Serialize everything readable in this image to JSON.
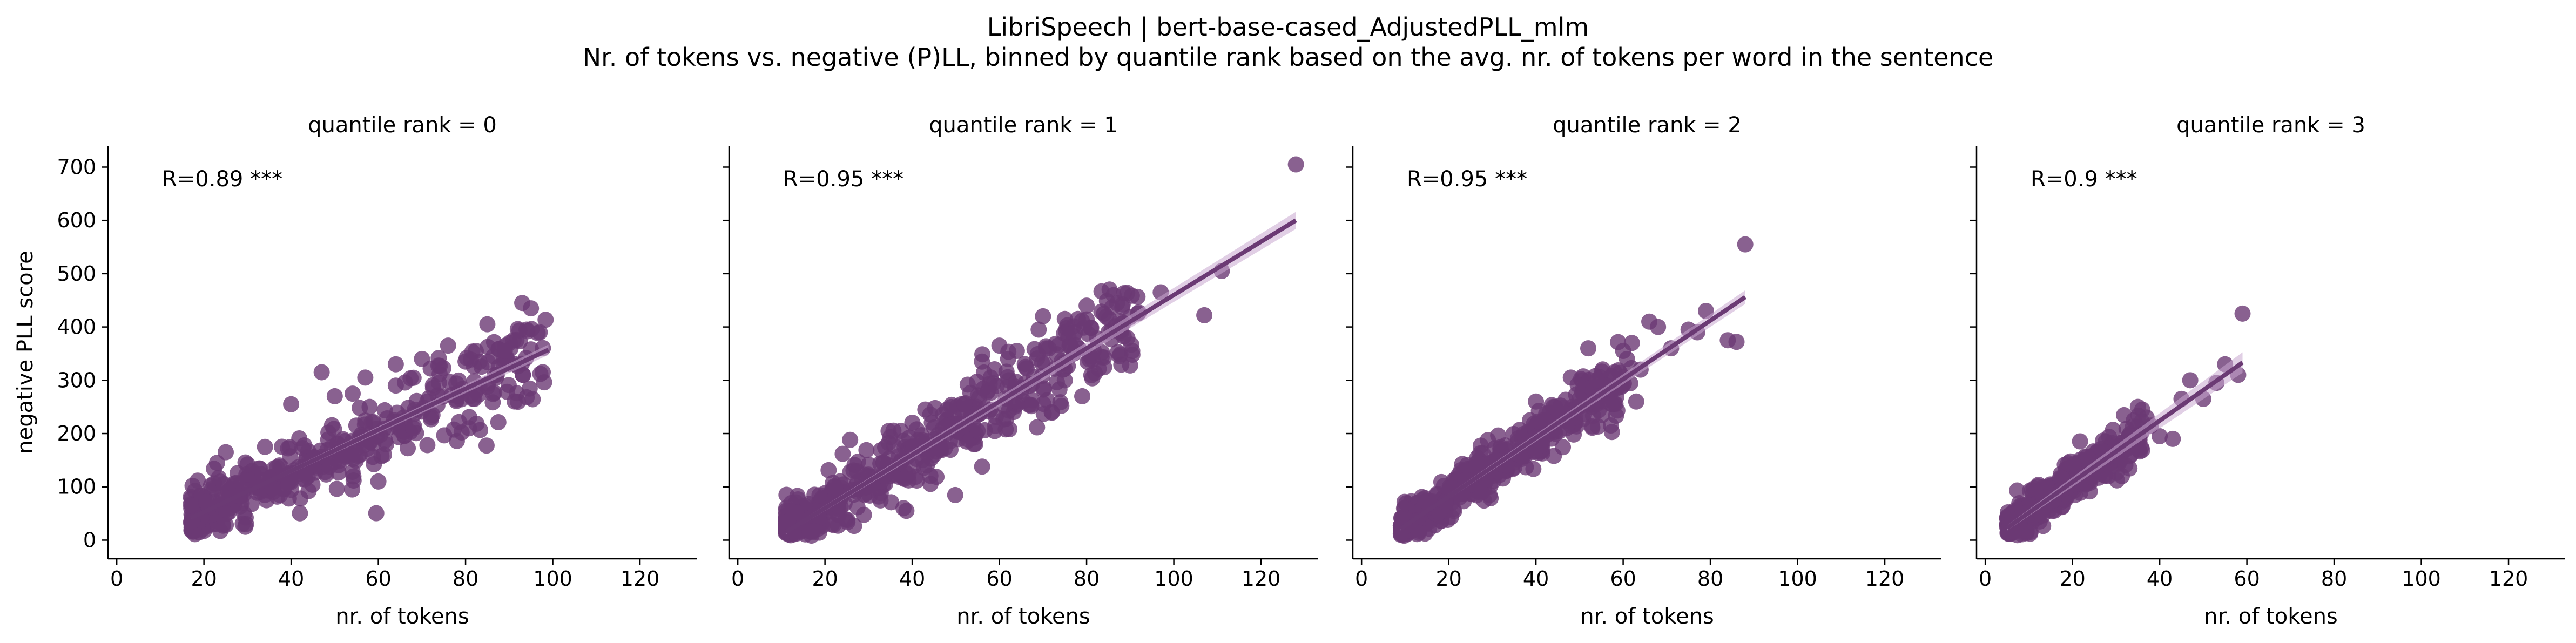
{
  "title": "LibriSpeech | bert-base-cased_AdjustedPLL_mlm",
  "subtitle": "Nr. of tokens vs. negative (P)LL, binned by quantile rank based on the avg. nr. of tokens per word in the sentence",
  "colors": {
    "points": "#6b3a74",
    "line": "#6b3a74",
    "band": "#c9a8cf"
  },
  "chart_data": [
    {
      "type": "scatter",
      "facet_title": "quantile rank = 0",
      "xlabel": "nr. of tokens",
      "ylabel": "negative PLL score",
      "xlim": [
        -2,
        133
      ],
      "ylim": [
        -35,
        740
      ],
      "xticks": [
        0,
        20,
        40,
        60,
        80,
        100,
        120
      ],
      "yticks": [
        0,
        100,
        200,
        300,
        400,
        500,
        600,
        700
      ],
      "annotation": "R=0.89 ***",
      "fit": {
        "x_range": [
          17,
          99
        ],
        "intercept": -24,
        "slope": 3.85,
        "band": 6
      },
      "point_cloud": {
        "x_range": [
          17,
          99
        ],
        "slope": 3.85,
        "intercept": -24,
        "spread": 22,
        "n": 420
      },
      "outliers": [
        [
          93,
          445
        ],
        [
          95,
          435
        ],
        [
          97,
          390
        ],
        [
          94,
          395
        ],
        [
          91,
          375
        ],
        [
          85,
          405
        ],
        [
          89,
          355
        ],
        [
          95,
          358
        ],
        [
          94,
          268
        ],
        [
          76,
          365
        ],
        [
          80,
          335
        ],
        [
          87,
          305
        ],
        [
          82,
          298
        ],
        [
          70,
          340
        ],
        [
          72,
          322
        ],
        [
          64,
          330
        ],
        [
          57,
          305
        ],
        [
          47,
          315
        ],
        [
          40,
          255
        ],
        [
          60,
          110
        ],
        [
          25,
          165
        ],
        [
          30,
          142
        ],
        [
          54,
          95
        ],
        [
          44,
          92
        ],
        [
          64,
          290
        ],
        [
          68,
          210
        ],
        [
          82,
          265
        ],
        [
          34,
          175
        ],
        [
          50,
          270
        ],
        [
          58,
          250
        ]
      ]
    },
    {
      "type": "scatter",
      "facet_title": "quantile rank = 1",
      "xlabel": "nr. of tokens",
      "ylabel": "",
      "xlim": [
        -2,
        133
      ],
      "ylim": [
        -35,
        740
      ],
      "xticks": [
        0,
        20,
        40,
        60,
        80,
        100,
        120
      ],
      "yticks": [
        0,
        100,
        200,
        300,
        400,
        500,
        600,
        700
      ],
      "annotation": "R=0.95 ***",
      "fit": {
        "x_range": [
          11,
          128
        ],
        "intercept": -40,
        "slope": 5.0,
        "band": 10
      },
      "point_cloud": {
        "x_range": [
          11,
          92
        ],
        "slope": 5.0,
        "intercept": -40,
        "spread": 22,
        "n": 480
      },
      "outliers": [
        [
          128,
          705
        ],
        [
          111,
          505
        ],
        [
          107,
          422
        ],
        [
          97,
          465
        ],
        [
          88,
          405
        ],
        [
          85,
          390
        ],
        [
          80,
          440
        ],
        [
          84,
          425
        ],
        [
          78,
          415
        ],
        [
          75,
          415
        ],
        [
          77,
          350
        ],
        [
          70,
          420
        ],
        [
          69,
          395
        ],
        [
          79,
          270
        ],
        [
          72,
          240
        ],
        [
          75,
          300
        ],
        [
          66,
          325
        ],
        [
          64,
          355
        ],
        [
          60,
          365
        ],
        [
          62,
          340
        ],
        [
          58,
          305
        ],
        [
          55,
          205
        ],
        [
          38,
          60
        ],
        [
          48,
          245
        ],
        [
          43,
          245
        ],
        [
          52,
          255
        ],
        [
          67,
          290
        ],
        [
          56,
          335
        ],
        [
          45,
          160
        ],
        [
          30,
          120
        ]
      ]
    },
    {
      "type": "scatter",
      "facet_title": "quantile rank = 2",
      "xlabel": "nr. of tokens",
      "ylabel": "",
      "xlim": [
        -2,
        133
      ],
      "ylim": [
        -35,
        740
      ],
      "xticks": [
        0,
        20,
        40,
        60,
        80,
        100,
        120
      ],
      "yticks": [
        0,
        100,
        200,
        300,
        400,
        500,
        600,
        700
      ],
      "annotation": "R=0.95 ***",
      "fit": {
        "x_range": [
          9,
          88
        ],
        "intercept": -28,
        "slope": 5.5,
        "band": 8
      },
      "point_cloud": {
        "x_range": [
          9,
          62
        ],
        "slope": 5.5,
        "intercept": -28,
        "spread": 18,
        "n": 430
      },
      "outliers": [
        [
          88,
          555
        ],
        [
          84,
          375
        ],
        [
          86,
          372
        ],
        [
          79,
          430
        ],
        [
          77,
          390
        ],
        [
          75,
          395
        ],
        [
          66,
          410
        ],
        [
          68,
          400
        ],
        [
          62,
          370
        ],
        [
          63,
          260
        ],
        [
          58,
          315
        ],
        [
          56,
          290
        ],
        [
          52,
          360
        ],
        [
          60,
          355
        ],
        [
          54,
          300
        ],
        [
          40,
          260
        ],
        [
          44,
          250
        ],
        [
          49,
          230
        ],
        [
          48,
          305
        ],
        [
          47,
          210
        ],
        [
          59,
          295
        ],
        [
          64,
          320
        ],
        [
          71,
          360
        ],
        [
          50,
          265
        ]
      ]
    },
    {
      "type": "scatter",
      "facet_title": "quantile rank = 3",
      "xlabel": "nr. of tokens",
      "ylabel": "",
      "xlim": [
        -2,
        133
      ],
      "ylim": [
        -35,
        740
      ],
      "xticks": [
        0,
        20,
        40,
        60,
        80,
        100,
        120
      ],
      "yticks": [
        0,
        100,
        200,
        300,
        400,
        500,
        600,
        700
      ],
      "annotation": "R=0.9 ***",
      "fit": {
        "x_range": [
          5,
          59
        ],
        "intercept": -6,
        "slope": 5.75,
        "band": 12
      },
      "point_cloud": {
        "x_range": [
          5,
          36
        ],
        "slope": 5.75,
        "intercept": -6,
        "spread": 16,
        "n": 380
      },
      "outliers": [
        [
          59,
          425
        ],
        [
          58,
          310
        ],
        [
          55,
          330
        ],
        [
          53,
          295
        ],
        [
          50,
          265
        ],
        [
          47,
          300
        ],
        [
          45,
          265
        ],
        [
          43,
          190
        ],
        [
          40,
          195
        ],
        [
          36,
          245
        ],
        [
          35,
          250
        ],
        [
          37,
          230
        ],
        [
          33,
          195
        ],
        [
          38,
          215
        ],
        [
          32,
          180
        ]
      ]
    }
  ]
}
